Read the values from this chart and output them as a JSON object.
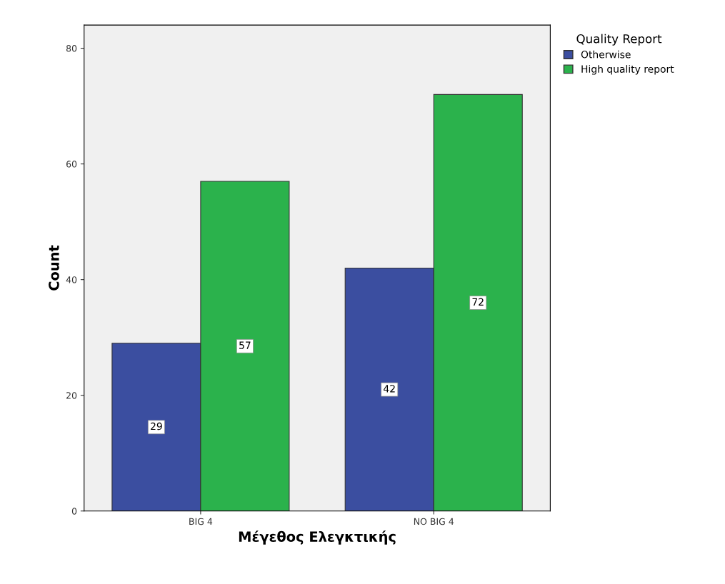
{
  "chart_data": {
    "type": "bar",
    "xlabel": "Μέγεθος Ελεγκτικής",
    "ylabel": "Count",
    "legend_title": "Quality Report",
    "categories": [
      "BIG 4",
      "NO BIG 4"
    ],
    "series": [
      {
        "name": "Otherwise",
        "color": "#3b4ea0",
        "values": [
          29,
          42
        ]
      },
      {
        "name": "High quality report",
        "color": "#2bb24c",
        "values": [
          57,
          72
        ]
      }
    ],
    "ylim": [
      0,
      84
    ],
    "yticks": [
      0,
      20,
      40,
      60,
      80
    ],
    "grid": false,
    "legend": "top right",
    "data_labels": true
  }
}
